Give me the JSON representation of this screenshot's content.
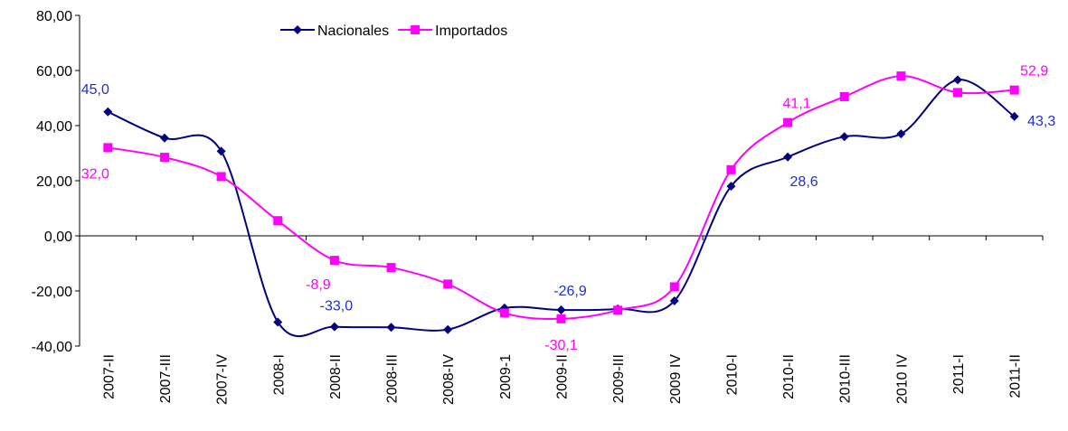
{
  "chart_data": {
    "type": "line",
    "categories": [
      "2007-II",
      "2007-III",
      "2007-IV",
      "2008-I",
      "2008-II",
      "2008-III",
      "2008-IV",
      "2009-1",
      "2009-II",
      "2009-III",
      "2009 IV",
      "2010-I",
      "2010-II",
      "2010-III",
      "2010 IV",
      "2011-I",
      "2011-II"
    ],
    "series": [
      {
        "name": "Nacionales",
        "color": "#000080",
        "label_color": "#1f2fd0",
        "marker": "diamond",
        "values": [
          45.0,
          35.5,
          30.7,
          -31.3,
          -33.0,
          -33.2,
          -34.0,
          -26.2,
          -26.9,
          -26.5,
          -23.6,
          18.0,
          28.6,
          36.0,
          37.0,
          56.6,
          43.3
        ],
        "value_labels": [
          "45,0",
          null,
          null,
          null,
          "-33,0",
          null,
          null,
          null,
          "-26,9",
          null,
          null,
          null,
          "28,6",
          null,
          null,
          null,
          "43,3"
        ]
      },
      {
        "name": "Importados",
        "color": "#ff00ff",
        "label_color": "#ff00ff",
        "marker": "square",
        "values": [
          32.0,
          28.5,
          21.5,
          5.5,
          -8.9,
          -11.5,
          -17.5,
          -28.0,
          -30.1,
          -27.0,
          -18.5,
          24.0,
          41.1,
          50.5,
          58.0,
          52.0,
          52.9
        ],
        "value_labels": [
          "32,0",
          null,
          null,
          null,
          "-8,9",
          null,
          null,
          null,
          "-30,1",
          null,
          null,
          null,
          "41,1",
          null,
          null,
          null,
          "52,9"
        ]
      }
    ],
    "ylim": [
      -40,
      80
    ],
    "yticks": [
      {
        "value": -40,
        "label": "-40,00"
      },
      {
        "value": -20,
        "label": "-20,00"
      },
      {
        "value": 0,
        "label": "0,00"
      },
      {
        "value": 20,
        "label": "20,00"
      },
      {
        "value": 40,
        "label": "40,00"
      },
      {
        "value": 60,
        "label": "60,00"
      },
      {
        "value": 80,
        "label": "80,00"
      }
    ],
    "legend": "top"
  }
}
